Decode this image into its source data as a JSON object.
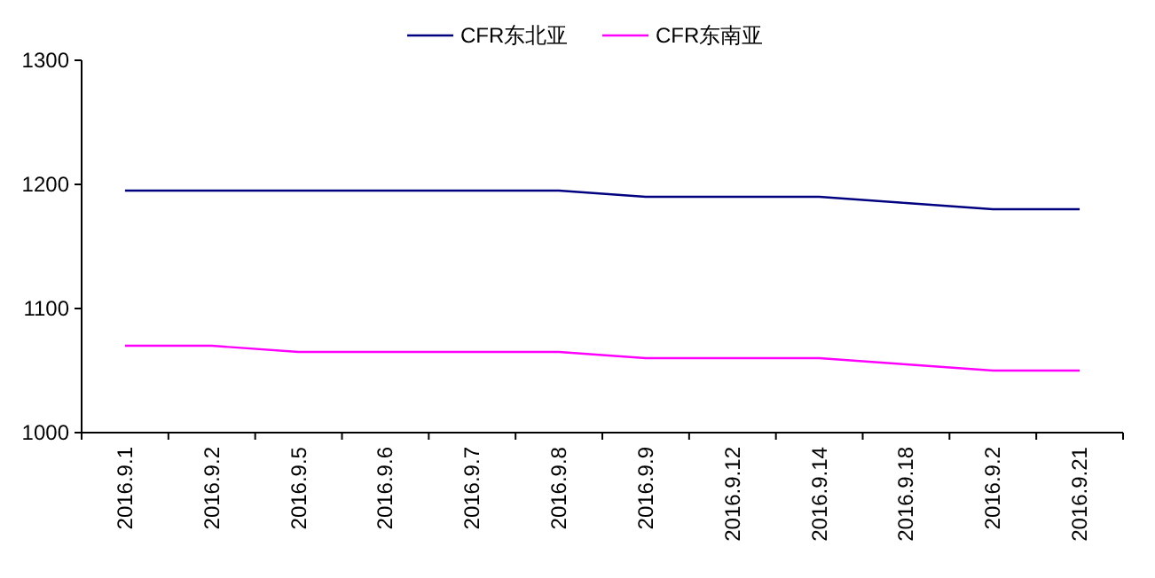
{
  "chart_data": {
    "type": "line",
    "categories": [
      "2016.9.1",
      "2016.9.2",
      "2016.9.5",
      "2016.9.6",
      "2016.9.7",
      "2016.9.8",
      "2016.9.9",
      "2016.9.12",
      "2016.9.14",
      "2016.9.18",
      "2016.9.2",
      "2016.9.21"
    ],
    "series": [
      {
        "name": "CFR东北亚",
        "color": "#000080",
        "values": [
          1195,
          1195,
          1195,
          1195,
          1195,
          1195,
          1190,
          1190,
          1190,
          1185,
          1180,
          1180
        ]
      },
      {
        "name": "CFR东南亚",
        "color": "#ff00ff",
        "values": [
          1070,
          1070,
          1065,
          1065,
          1065,
          1065,
          1060,
          1060,
          1060,
          1055,
          1050,
          1050
        ]
      }
    ],
    "ylim": [
      1000,
      1300
    ],
    "yticks": [
      1000,
      1100,
      1200,
      1300
    ],
    "grid": false,
    "legend": "top",
    "marker": "none",
    "line_style": "solid"
  }
}
